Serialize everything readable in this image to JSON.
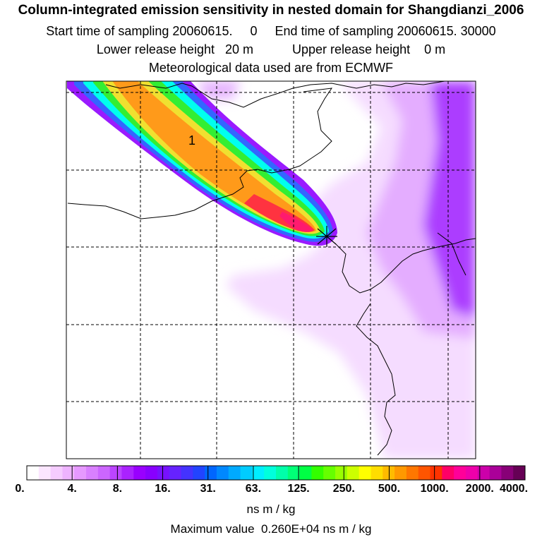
{
  "header": {
    "title": "Column-integrated emission sensitivity in nested domain for Shangdianzi_2006",
    "line2": "Start time of sampling 20060615.     0     End time of sampling 20060615. 30000",
    "line3": "Lower release height   20 m           Upper release height    0 m",
    "line4": "Meteorological data used are from ECMWF"
  },
  "map": {
    "contour_label": "1",
    "colors": {
      "plume_core": "#ff1a6e",
      "plume_orange": "#ff9a1a",
      "plume_yellow": "#f0e030",
      "plume_green": "#33ee33",
      "plume_cyan": "#00ffee",
      "plume_blue": "#3366ff",
      "halo_purple": "#9a1aff",
      "background_light": "#f4d8ff",
      "background_mid": "#e2a8ff"
    }
  },
  "colorbar": {
    "ticks": [
      "0.",
      "4.",
      "8.",
      "16.",
      "31.",
      "63.",
      "125.",
      "250.",
      "500.",
      "1000.",
      "2000.",
      "4000."
    ],
    "colors": [
      "#ffffff",
      "#fbe6ff",
      "#f5ccff",
      "#eeb3ff",
      "#e699ff",
      "#d980ff",
      "#cc66ff",
      "#bb44ff",
      "#aa22ff",
      "#9900ff",
      "#8800ff",
      "#7711ff",
      "#6622ff",
      "#4433ff",
      "#2244ff",
      "#0066ff",
      "#0088ff",
      "#00aaff",
      "#00ccff",
      "#00eeff",
      "#00ffdd",
      "#00ffaa",
      "#00ff77",
      "#00ff44",
      "#33ff00",
      "#66ff00",
      "#99ff00",
      "#ccff00",
      "#ffff00",
      "#ffdd00",
      "#ffbb00",
      "#ff9900",
      "#ff7700",
      "#ff5500",
      "#ff3300",
      "#ff0066",
      "#ff0099",
      "#ee00aa",
      "#cc00aa",
      "#aa0099",
      "#880077",
      "#660055"
    ],
    "unit": "ns m / kg"
  },
  "footer": {
    "max_value": "Maximum value  0.260E+04 ns m / kg"
  }
}
